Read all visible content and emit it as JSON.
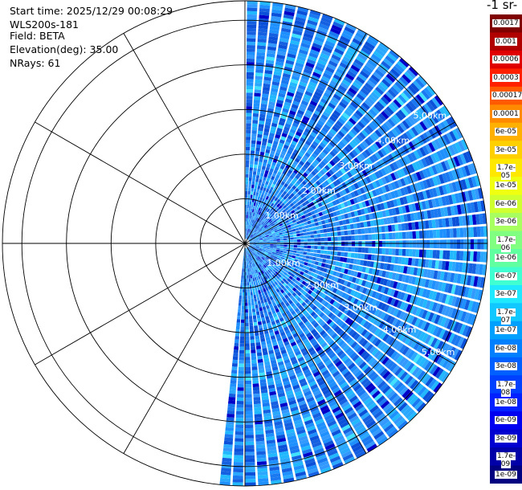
{
  "header": {
    "start_time": "Start time: 2025/12/29 00:08:29",
    "instrument": "WLS200s-181",
    "field": "Field: BETA",
    "elevation": "Elevation(deg): 35.00",
    "nrays": "NRays: 61"
  },
  "colorbar": {
    "title": "-1 sr-",
    "ticks": [
      "0.0017",
      "0.001",
      "0.0006",
      "0.0003",
      "0.00017",
      "0.0001",
      "6e-05",
      "3e-05",
      "1.7e-05",
      "1e-05",
      "6e-06",
      "3e-06",
      "1.7e-06",
      "1e-06",
      "6e-07",
      "3e-07",
      "1.7e-07",
      "1e-07",
      "6e-08",
      "3e-08",
      "1.7e-08",
      "1e-08",
      "6e-09",
      "3e-09",
      "1.7e-09",
      "1e-09"
    ],
    "colors": [
      "#800000",
      "#b00000",
      "#e00000",
      "#ff2000",
      "#ff5a00",
      "#ff8a00",
      "#ffb000",
      "#ffd000",
      "#ffe800",
      "#f0ff10",
      "#d0ff30",
      "#a8ff60",
      "#80ff80",
      "#60ffa0",
      "#40ffd0",
      "#20e8ff",
      "#10c8ff",
      "#00a0ff",
      "#0080ff",
      "#0060ff",
      "#0040ff",
      "#0020ff",
      "#0000f0",
      "#0000d0",
      "#0000a8",
      "#000080"
    ]
  },
  "chart_data": {
    "type": "heatmap",
    "projection": "polar (PPI scan)",
    "field": "BETA",
    "elevation_deg": 35.0,
    "nrays": 61,
    "azimuth_coverage_deg": [
      0,
      183
    ],
    "range_rings_km": [
      1.0,
      2.0,
      3.0,
      4.0,
      5.0
    ],
    "range_labels_upper": [
      "1.00km",
      "2.00km",
      "3.00km",
      "4.00km",
      "5.00km"
    ],
    "range_labels_lower": [
      "1.00km",
      "2.00km",
      "3.00km",
      "4.00km",
      "5.00km"
    ],
    "max_range_km": 5.0,
    "color_scale": "log",
    "value_range": [
      1e-09,
      0.0017
    ],
    "dominant_value_range": [
      1.7e-08,
      1e-07
    ],
    "grid": true
  }
}
